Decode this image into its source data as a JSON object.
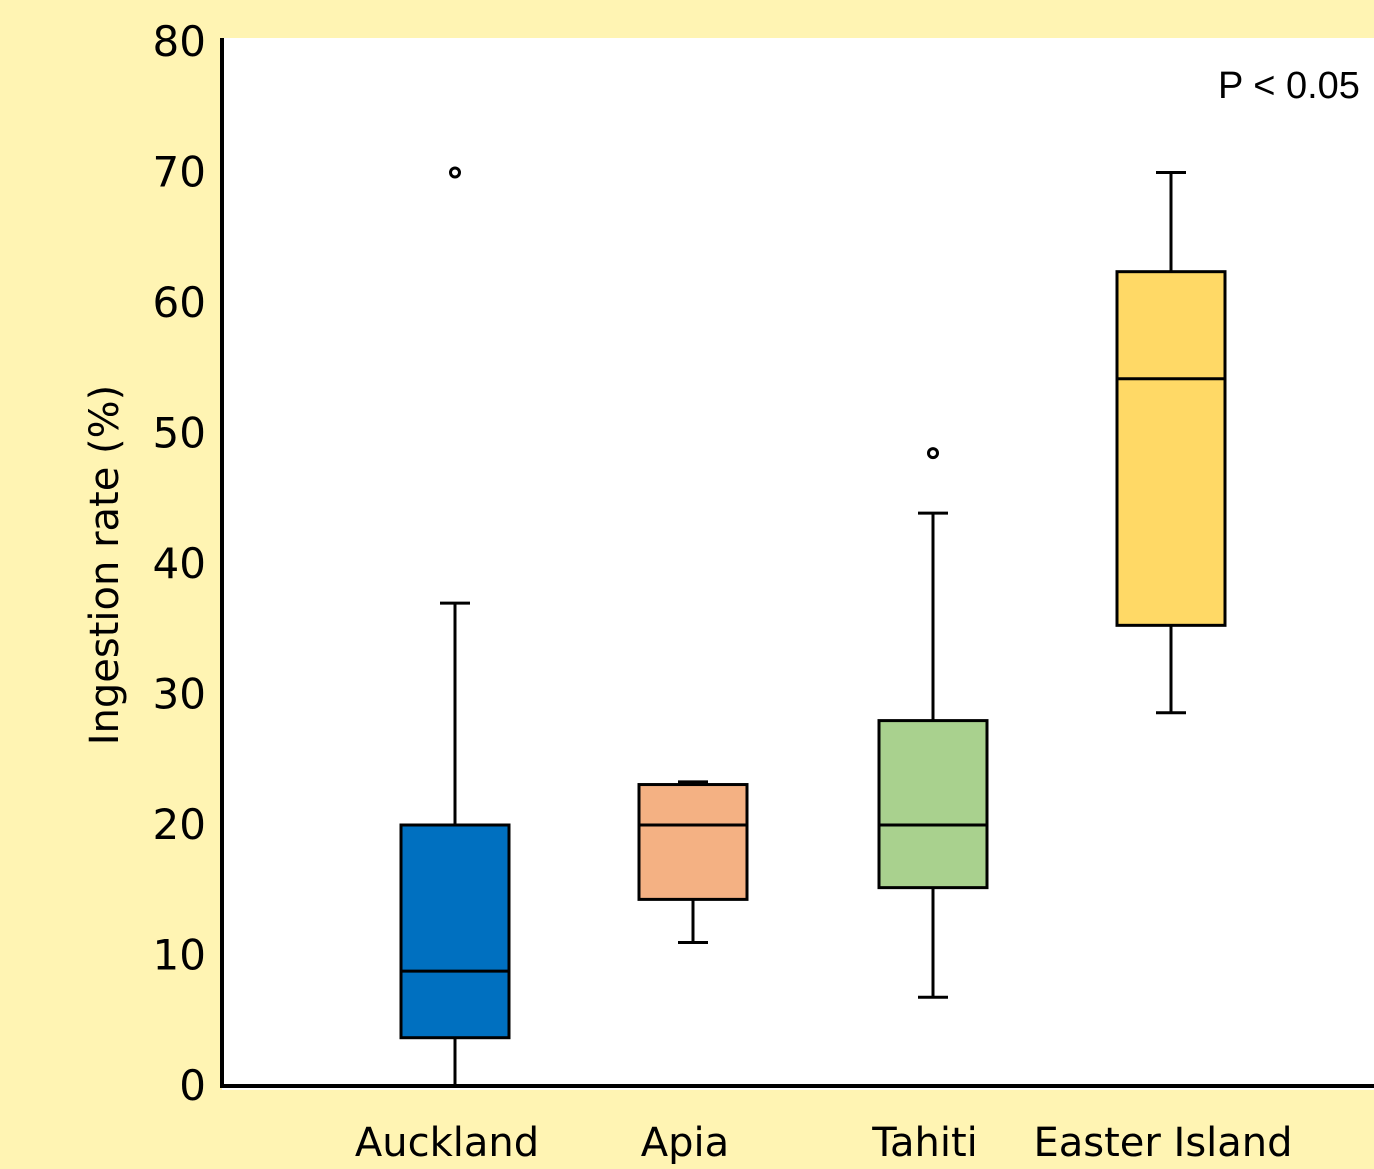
{
  "chart_data": {
    "type": "box",
    "ylabel": "Ingestion rate (%)",
    "ylim": [
      0,
      80
    ],
    "yticks": [
      0,
      10,
      20,
      30,
      40,
      50,
      60,
      70,
      80
    ],
    "annotation": "P < 0.05",
    "categories": [
      "Auckland",
      "Apia",
      "Tahiti",
      "Easter Island"
    ],
    "boxes": [
      {
        "category": "Auckland",
        "whisker_low": 0,
        "q1": 3.7,
        "median": 8.8,
        "q3": 20,
        "whisker_high": 37,
        "outliers": [
          70
        ],
        "color": "#0070c0"
      },
      {
        "category": "Apia",
        "whisker_low": 11,
        "q1": 14.3,
        "median": 20,
        "q3": 23.1,
        "whisker_high": 23.3,
        "outliers": [],
        "color": "#f4b183"
      },
      {
        "category": "Tahiti",
        "whisker_low": 6.8,
        "q1": 15.2,
        "median": 20,
        "q3": 28,
        "whisker_high": 43.9,
        "outliers": [
          48.5
        ],
        "color": "#a9d18e"
      },
      {
        "category": "Easter Island",
        "whisker_low": 28.6,
        "q1": 35.3,
        "median": 54.2,
        "q3": 62.4,
        "whisker_high": 70,
        "outliers": [],
        "color": "#ffd966"
      }
    ],
    "background_color": "#fff4b3",
    "plot_background_color": "#ffffff",
    "grid": false
  }
}
